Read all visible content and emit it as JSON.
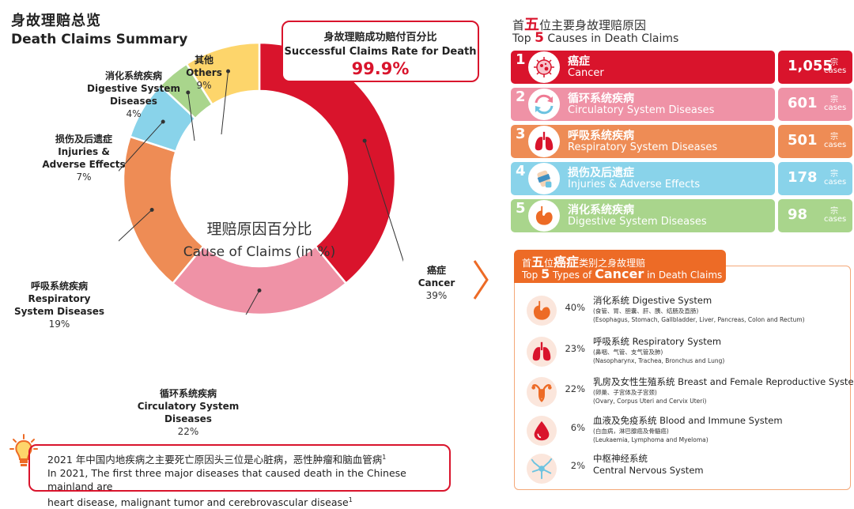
{
  "header": {
    "title_zh": "身故理赔总览",
    "title_en": "Death Claims Summary"
  },
  "success": {
    "label_zh": "身故理赔成功赔付百分比",
    "label_en": "Successful Claims Rate for Death",
    "value": "99.9%"
  },
  "colors": {
    "red": "#d9142c",
    "pink": "#ef92a6",
    "orange": "#ee8c55",
    "blue": "#89d3ea",
    "green": "#a9d58c",
    "yellow": "#fdd56b"
  },
  "chart_data": {
    "type": "pie",
    "title_zh": "理赔原因百分比",
    "title_en": "Cause of Claims (in %)",
    "unit": "%",
    "slices": [
      {
        "name_zh": "癌症",
        "name_en": "Cancer",
        "value": 39,
        "label": "39%",
        "color": "#d9142c"
      },
      {
        "name_zh": "循环系统疾病",
        "name_en": "Circulatory System Diseases",
        "value": 22,
        "label": "22%",
        "color": "#ef92a6"
      },
      {
        "name_zh": "呼吸系统疾病",
        "name_en": "Respiratory System Diseases",
        "value": 19,
        "label": "19%",
        "color": "#ee8c55"
      },
      {
        "name_zh": "损伤及后遗症",
        "name_en": "Injuries & Adverse Effects",
        "value": 7,
        "label": "7%",
        "color": "#89d3ea"
      },
      {
        "name_zh": "消化系统疾病",
        "name_en": "Digestive System Diseases",
        "value": 4,
        "label": "4%",
        "color": "#a9d58c"
      },
      {
        "name_zh": "其他",
        "name_en": "Others",
        "value": 9,
        "label": "9%",
        "color": "#fdd56b"
      }
    ]
  },
  "labels": {
    "cancer": {
      "zh": "癌症",
      "en": "Cancer",
      "pct": "39%"
    },
    "circ": {
      "zh": "循环系统疾病",
      "en": "Circulatory System Diseases",
      "pct": "22%"
    },
    "resp": {
      "zh": "呼吸系统疾病",
      "en1": "Respiratory",
      "en2": "System Diseases",
      "pct": "19%"
    },
    "inj": {
      "zh": "损伤及后遗症",
      "en1": "Injuries &",
      "en2": "Adverse Effects",
      "pct": "7%"
    },
    "dig": {
      "zh": "消化系统疾病",
      "en1": "Digestive System",
      "en2": "Diseases",
      "pct": "4%"
    },
    "oth": {
      "zh": "其他",
      "en": "Others",
      "pct": "9%"
    }
  },
  "note": {
    "line_zh": "2021 年中国内地疾病之主要死亡原因头三位是心脏病，恶性肿瘤和脑血管病",
    "line_en1": "In 2021, The first three major diseases that caused death in the Chinese mainland are",
    "line_en2": "heart disease, malignant tumor and cerebrovascular disease",
    "footnote": "1"
  },
  "top5": {
    "title_zh_pre": "首",
    "title_zh_big": "五",
    "title_zh_post": "位主要身故理赔原因",
    "title_en_pre": "Top",
    "title_en_big": "5",
    "title_en_post": "Causes in Death Claims",
    "unit_zh": "宗",
    "unit_en": "cases",
    "items": [
      {
        "num": "1",
        "zh": "癌症",
        "en": "Cancer",
        "count": "1,055",
        "color": "#d9142c",
        "icon": "cancer-cell-icon"
      },
      {
        "num": "2",
        "zh": "循环系统疾病",
        "en": "Circulatory System Diseases",
        "count": "601",
        "color": "#ef92a6",
        "icon": "circulation-arrows-icon"
      },
      {
        "num": "3",
        "zh": "呼吸系统疾病",
        "en": "Respiratory System Diseases",
        "count": "501",
        "color": "#ee8c55",
        "icon": "lungs-icon"
      },
      {
        "num": "4",
        "zh": "损伤及后遗症",
        "en": "Injuries & Adverse Effects",
        "count": "178",
        "color": "#89d3ea",
        "icon": "bandage-hand-icon"
      },
      {
        "num": "5",
        "zh": "消化系统疾病",
        "en": "Digestive System Diseases",
        "count": "98",
        "color": "#a9d58c",
        "icon": "stomach-icon"
      }
    ]
  },
  "cancer_types": {
    "title_zh_pre": "首",
    "title_zh_big1": "五",
    "title_zh_mid": "位",
    "title_zh_big2": "癌症",
    "title_zh_post": "类别之身故理赔",
    "title_en_pre": "Top",
    "title_en_big1": "5",
    "title_en_mid": "Types of",
    "title_en_big2": "Cancer",
    "title_en_post": "in Death Claims",
    "items": [
      {
        "pct": "40%",
        "name": "消化系统 Digestive System",
        "sub_zh": "(食管、胃、胆囊、肝、胰、结肠及直肠)",
        "sub_en": "(Esophagus, Stomach, Gallbladder, Liver, Pancreas, Colon and Rectum)",
        "icon": "stomach-icon"
      },
      {
        "pct": "23%",
        "name": "呼吸系统 Respiratory System",
        "sub_zh": "(鼻咽、气管、支气管及肺)",
        "sub_en": "(Nasopharynx, Trachea, Bronchus and Lung)",
        "icon": "lungs-icon"
      },
      {
        "pct": "22%",
        "name": "乳房及女性生殖系统 Breast and Female Reproductive System",
        "sub_zh": "(卵巢、子宫体及子宫颈)",
        "sub_en": "(Ovary, Corpus Uteri and Cervix Uteri)",
        "icon": "uterus-icon"
      },
      {
        "pct": "6%",
        "name": "血液及免疫系统 Blood and Immune System",
        "sub_zh": "(白血病，淋巴腺癌及骨髓癌)",
        "sub_en": "(Leukaemia, Lymphoma and Myeloma)",
        "icon": "blood-drop-icon"
      },
      {
        "pct": "2%",
        "name": "中枢神经系统",
        "name2": "Central Nervous System",
        "icon": "neuron-icon"
      }
    ]
  }
}
